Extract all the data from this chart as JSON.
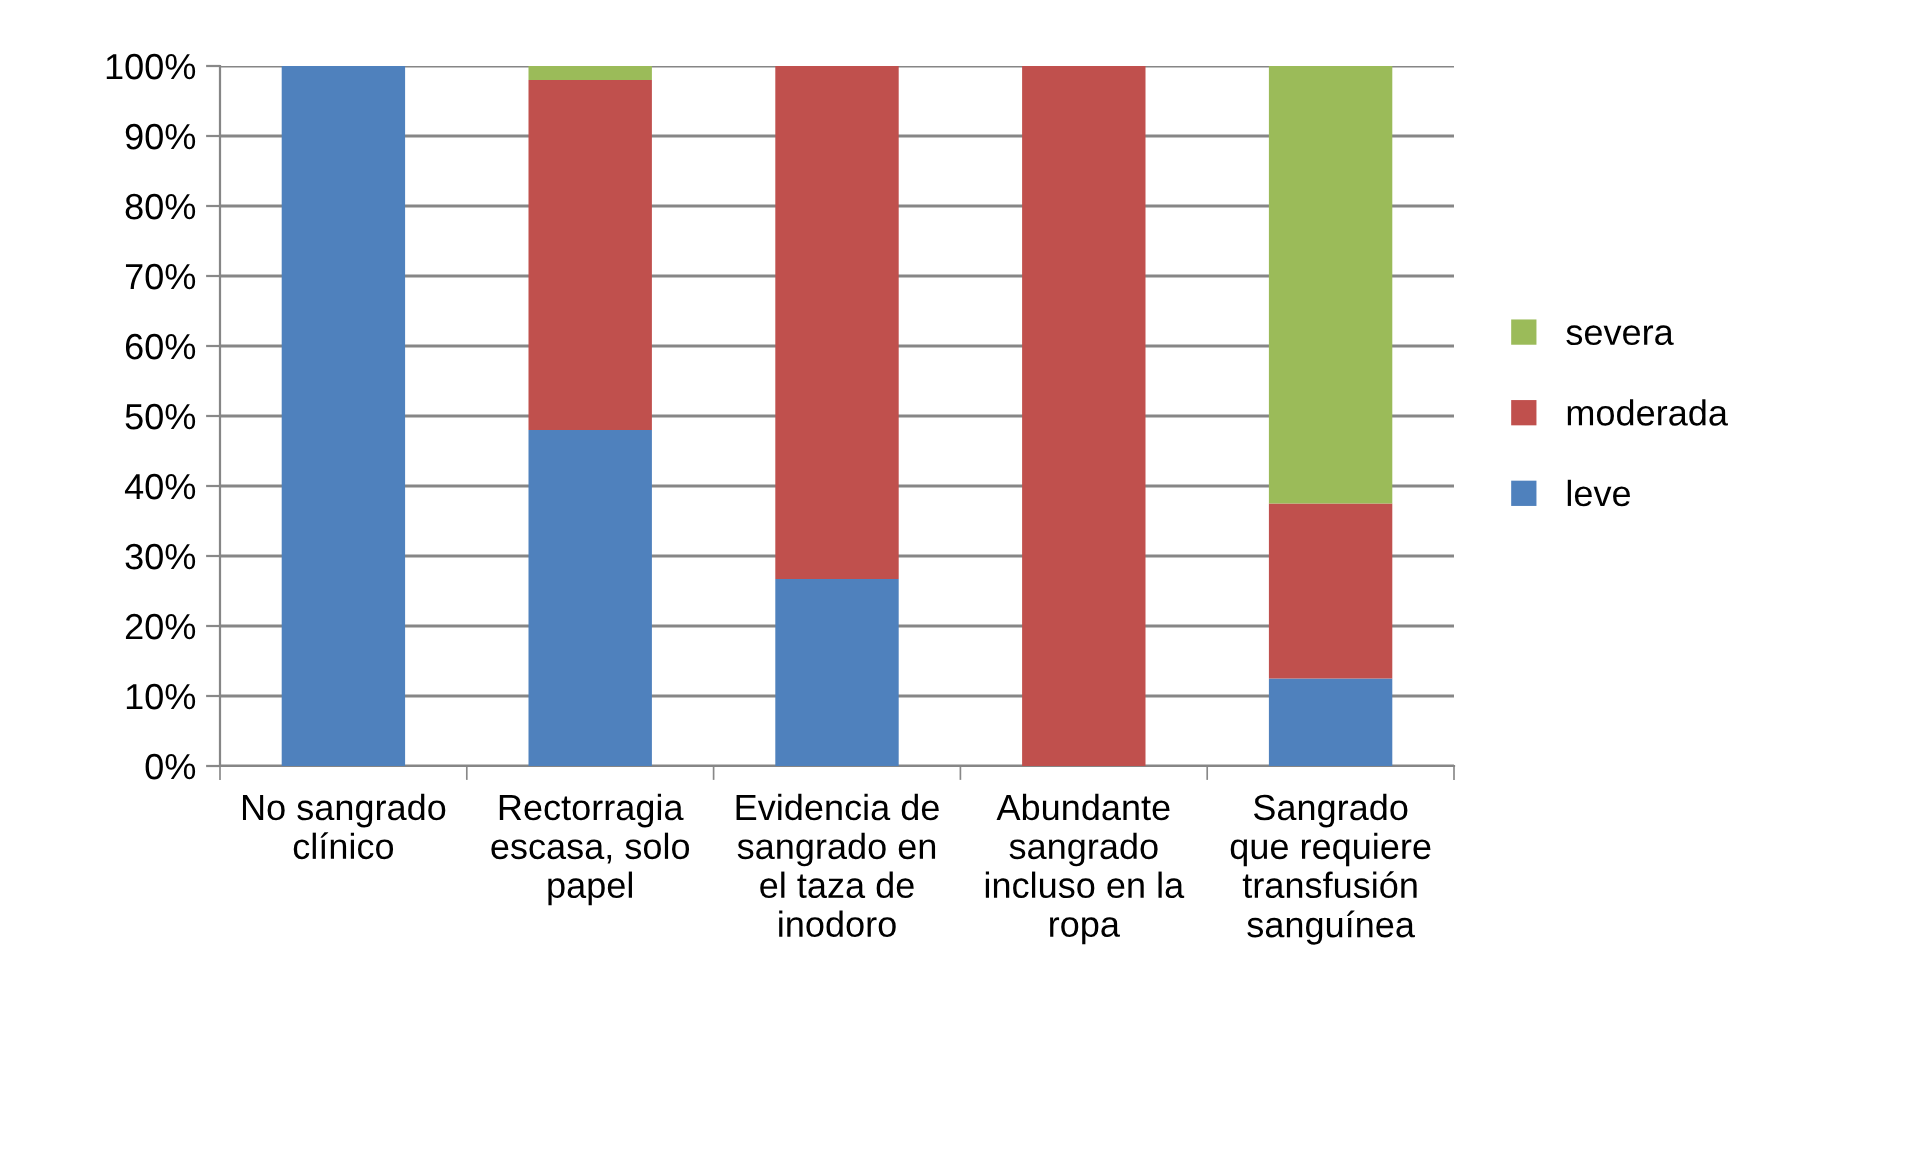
{
  "chart_data": {
    "type": "bar",
    "stacked": true,
    "categories": [
      "No sangrado clínico",
      "Rectorragia escasa, solo papel",
      "Evidencia de sangrado en el taza de inodoro",
      "Abundante sangrado incluso en la ropa",
      "Sangrado que requiere transfusión sanguínea"
    ],
    "series": [
      {
        "name": "leve",
        "color": "#4f81bd",
        "values": [
          100,
          48,
          26.7,
          0,
          12.5
        ]
      },
      {
        "name": "moderada",
        "color": "#c0504d",
        "values": [
          0,
          50,
          73.3,
          100,
          25
        ]
      },
      {
        "name": "severa",
        "color": "#9bbb59",
        "values": [
          0,
          2,
          0,
          0,
          62.5
        ]
      }
    ],
    "ylim": [
      0,
      100
    ],
    "yticks": [
      {
        "value": 0,
        "label": "0%"
      },
      {
        "value": 10,
        "label": "10%"
      },
      {
        "value": 20,
        "label": "20%"
      },
      {
        "value": 30,
        "label": "30%"
      },
      {
        "value": 40,
        "label": "40%"
      },
      {
        "value": 50,
        "label": "50%"
      },
      {
        "value": 60,
        "label": "60%"
      },
      {
        "value": 70,
        "label": "70%"
      },
      {
        "value": 80,
        "label": "80%"
      },
      {
        "value": 90,
        "label": "90%"
      },
      {
        "value": 100,
        "label": "100%"
      }
    ],
    "grid": "y",
    "legend": "right"
  }
}
